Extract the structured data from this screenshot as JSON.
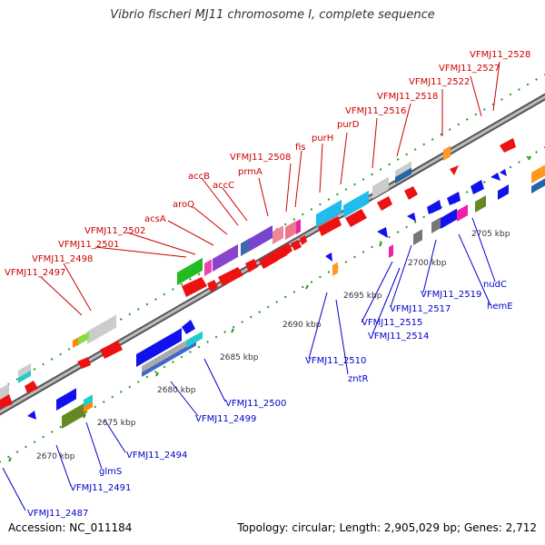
{
  "title": "Vibrio fischeri MJ11 chromosome I, complete sequence",
  "footer": {
    "accession": "Accession: NC_011184",
    "summary": "Topology: circular; Length: 2,905,029 bp; Genes: 2,712"
  },
  "colors": {
    "top_label": "#cc0000",
    "bottom_label": "#0000cc",
    "backbone": "#888888",
    "tick": "#229922"
  },
  "scale_labels": [
    "2670 kbp",
    "2675 kbp",
    "2680 kbp",
    "2685 kbp",
    "2690 kbp",
    "2695 kbp",
    "2700 kbp",
    "2705 kbp"
  ],
  "top_labels": [
    "VFMJ11_2497",
    "VFMJ11_2498",
    "VFMJ11_2501",
    "VFMJ11_2502",
    "acsA",
    "aroQ",
    "accB",
    "accC",
    "prmA",
    "VFMJ11_2508",
    "fis",
    "purH",
    "purD",
    "VFMJ11_2516",
    "VFMJ11_2518",
    "VFMJ11_2522",
    "VFMJ11_2527",
    "VFMJ11_2528"
  ],
  "bottom_labels": [
    "VFMJ11_2487",
    "glmS",
    "VFMJ11_2491",
    "VFMJ11_2494",
    "VFMJ11_2499",
    "VFMJ11_2500",
    "VFMJ11_2510",
    "zntR",
    "VFMJ11_2514",
    "VFMJ11_2515",
    "VFMJ11_2517",
    "VFMJ11_2519",
    "hemE",
    "nudC"
  ]
}
